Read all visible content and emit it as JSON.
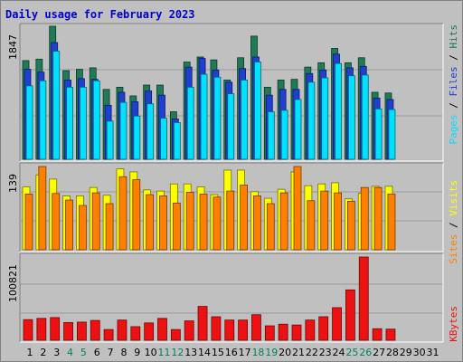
{
  "title": "Daily usage for February 2023",
  "colors": {
    "hits": "#1f7a55",
    "files": "#1f3fd1",
    "pages": "#00e0ff",
    "visits": "#ffff00",
    "sites": "#ff8000",
    "kbytes": "#ee1111",
    "weekend": "#008060",
    "highlight_day": "#008060"
  },
  "chart_data": [
    {
      "type": "bar",
      "name": "hits-files-pages",
      "ymax_label": "1847",
      "ylim": [
        0,
        1847
      ],
      "legend": [
        {
          "key": "pages",
          "label": "Pages"
        },
        {
          "key": "files",
          "label": "Files"
        },
        {
          "key": "hits",
          "label": "Hits"
        }
      ],
      "x": [
        1,
        2,
        3,
        4,
        5,
        6,
        7,
        8,
        9,
        10,
        11,
        12,
        13,
        14,
        15,
        16,
        17,
        18,
        19,
        20,
        21,
        22,
        23,
        24,
        25,
        26,
        27,
        28
      ],
      "series": [
        {
          "key": "hits",
          "values": [
            1370,
            1390,
            1847,
            1230,
            1250,
            1270,
            970,
            1000,
            880,
            1030,
            1030,
            660,
            1350,
            1420,
            1380,
            1100,
            1410,
            1710,
            1000,
            1100,
            1110,
            1280,
            1340,
            1540,
            1340,
            1410,
            930,
            920
          ]
        },
        {
          "key": "files",
          "values": [
            1250,
            1210,
            1620,
            1100,
            1120,
            1110,
            750,
            930,
            800,
            950,
            890,
            560,
            1280,
            1400,
            1240,
            1070,
            1260,
            1420,
            890,
            970,
            970,
            1190,
            1240,
            1460,
            1270,
            1290,
            850,
            830
          ]
        },
        {
          "key": "pages",
          "values": [
            1020,
            1090,
            1500,
            1000,
            1000,
            1090,
            530,
            790,
            600,
            770,
            570,
            510,
            1000,
            1180,
            1140,
            910,
            1100,
            1350,
            660,
            680,
            830,
            1070,
            1130,
            1330,
            1160,
            1170,
            700,
            690
          ]
        }
      ]
    },
    {
      "type": "bar",
      "name": "visits-sites",
      "ymax_label": "139",
      "ylim": [
        0,
        139
      ],
      "legend": [
        {
          "key": "sites",
          "label": "Sites"
        },
        {
          "key": "visits",
          "label": "Visits"
        }
      ],
      "x": [
        1,
        2,
        3,
        4,
        5,
        6,
        7,
        8,
        9,
        10,
        11,
        12,
        13,
        14,
        15,
        16,
        17,
        18,
        19,
        20,
        21,
        22,
        23,
        24,
        25,
        26,
        27,
        28
      ],
      "series": [
        {
          "key": "visits",
          "values": [
            105,
            125,
            118,
            90,
            90,
            104,
            91,
            135,
            130,
            100,
            98,
            110,
            110,
            105,
            92,
            133,
            133,
            97,
            86,
            101,
            130,
            107,
            110,
            112,
            85,
            94,
            106,
            106
          ]
        },
        {
          "key": "sites",
          "values": [
            93,
            139,
            94,
            83,
            74,
            95,
            77,
            122,
            117,
            92,
            90,
            78,
            96,
            93,
            88,
            98,
            108,
            90,
            77,
            95,
            139,
            82,
            98,
            95,
            81,
            104,
            104,
            93
          ]
        }
      ]
    },
    {
      "type": "bar",
      "name": "kbytes",
      "ymax_label": "100821",
      "ylim": [
        0,
        100821
      ],
      "legend": [
        {
          "key": "kbytes",
          "label": "KBytes"
        }
      ],
      "x": [
        1,
        2,
        3,
        4,
        5,
        6,
        7,
        8,
        9,
        10,
        11,
        12,
        13,
        14,
        15,
        16,
        17,
        18,
        19,
        20,
        21,
        22,
        23,
        24,
        25,
        26,
        27,
        28
      ],
      "series": [
        {
          "key": "kbytes",
          "values": [
            25000,
            26500,
            27500,
            21500,
            22000,
            24000,
            13000,
            24500,
            16500,
            21000,
            26500,
            13000,
            23500,
            41000,
            28500,
            24500,
            24500,
            31000,
            17500,
            19500,
            18500,
            24500,
            28500,
            39500,
            61000,
            100821,
            14000,
            13500
          ]
        }
      ]
    }
  ],
  "x_labels": [
    "1",
    "2",
    "3",
    "4",
    "5",
    "6",
    "7",
    "8",
    "9",
    "10",
    "11",
    "12",
    "13",
    "14",
    "15",
    "16",
    "17",
    "18",
    "19",
    "20",
    "21",
    "22",
    "23",
    "24",
    "25",
    "26",
    "27",
    "28",
    "29",
    "30",
    "31"
  ],
  "weekend_days": [
    4,
    5,
    11,
    12,
    18,
    19,
    25,
    26
  ]
}
